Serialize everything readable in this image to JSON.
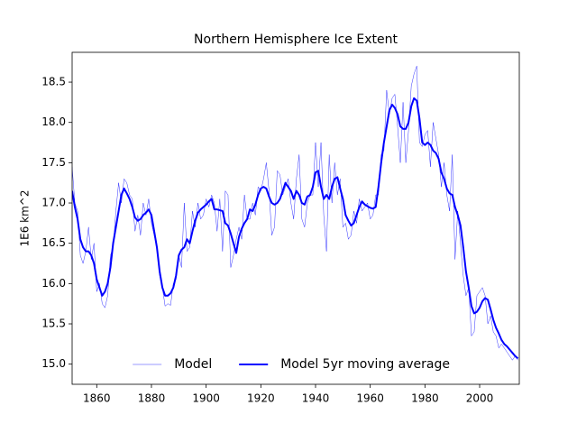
{
  "chart_data": {
    "type": "line",
    "title": "Northern Hemisphere Ice Extent",
    "y_label": "1E6 km^2",
    "x": [
      1851,
      1852,
      1853,
      1854,
      1855,
      1856,
      1857,
      1858,
      1859,
      1860,
      1861,
      1862,
      1863,
      1864,
      1865,
      1866,
      1867,
      1868,
      1869,
      1870,
      1871,
      1872,
      1873,
      1874,
      1875,
      1876,
      1877,
      1878,
      1879,
      1880,
      1881,
      1882,
      1883,
      1884,
      1885,
      1886,
      1887,
      1888,
      1889,
      1890,
      1891,
      1892,
      1893,
      1894,
      1895,
      1896,
      1897,
      1898,
      1899,
      1900,
      1901,
      1902,
      1903,
      1904,
      1905,
      1906,
      1907,
      1908,
      1909,
      1910,
      1911,
      1912,
      1913,
      1914,
      1915,
      1916,
      1917,
      1918,
      1919,
      1920,
      1921,
      1922,
      1923,
      1924,
      1925,
      1926,
      1927,
      1928,
      1929,
      1930,
      1931,
      1932,
      1933,
      1934,
      1935,
      1936,
      1937,
      1938,
      1939,
      1940,
      1941,
      1942,
      1943,
      1944,
      1945,
      1946,
      1947,
      1948,
      1949,
      1950,
      1951,
      1952,
      1953,
      1954,
      1955,
      1956,
      1957,
      1958,
      1959,
      1960,
      1961,
      1962,
      1963,
      1964,
      1965,
      1966,
      1967,
      1968,
      1969,
      1970,
      1971,
      1972,
      1973,
      1974,
      1975,
      1976,
      1977,
      1978,
      1979,
      1980,
      1981,
      1982,
      1983,
      1984,
      1985,
      1986,
      1987,
      1988,
      1989,
      1990,
      1991,
      1992,
      1993,
      1994,
      1995,
      1996,
      1997,
      1998,
      1999,
      2000,
      2001,
      2002,
      2003,
      2004,
      2005,
      2006,
      2007,
      2008,
      2009,
      2010,
      2011,
      2012,
      2013,
      2014
    ],
    "series": [
      {
        "name": "Model",
        "color": "#0000ff",
        "width": 0.4,
        "values": [
          17.45,
          17.0,
          16.9,
          16.35,
          16.25,
          16.4,
          16.7,
          16.3,
          16.5,
          15.9,
          16.0,
          15.75,
          15.7,
          15.85,
          16.35,
          16.45,
          16.9,
          17.25,
          17.0,
          17.3,
          17.25,
          17.1,
          17.05,
          16.65,
          16.85,
          16.6,
          17.0,
          16.85,
          17.05,
          16.75,
          16.6,
          16.45,
          16.1,
          15.95,
          15.72,
          15.75,
          15.73,
          16.0,
          16.05,
          16.35,
          16.2,
          17.0,
          16.4,
          16.45,
          16.9,
          16.7,
          17.0,
          16.8,
          16.85,
          17.05,
          16.95,
          17.1,
          17.0,
          16.65,
          17.05,
          16.4,
          17.15,
          17.1,
          16.2,
          16.35,
          16.55,
          16.7,
          16.55,
          17.1,
          16.8,
          16.8,
          17.0,
          16.85,
          17.2,
          17.15,
          17.3,
          17.5,
          17.15,
          16.6,
          16.7,
          17.4,
          17.35,
          17.1,
          17.2,
          17.3,
          17.0,
          16.8,
          17.3,
          17.6,
          16.8,
          16.7,
          17.0,
          17.1,
          17.1,
          17.75,
          17.2,
          17.75,
          16.85,
          16.4,
          17.6,
          17.0,
          17.5,
          17.1,
          17.3,
          16.7,
          16.75,
          16.55,
          16.6,
          16.9,
          16.75,
          17.05,
          16.9,
          16.95,
          17.0,
          16.8,
          16.85,
          17.1,
          17.1,
          17.6,
          17.65,
          18.4,
          18.1,
          18.3,
          18.35,
          17.95,
          17.5,
          18.25,
          17.5,
          17.9,
          18.45,
          18.6,
          18.7,
          17.75,
          17.7,
          17.85,
          17.9,
          17.45,
          18.0,
          17.8,
          17.6,
          17.2,
          17.5,
          17.1,
          16.9,
          17.6,
          16.3,
          16.9,
          16.5,
          16.1,
          15.85,
          15.95,
          15.35,
          15.4,
          15.85,
          15.9,
          15.95,
          15.85,
          15.5,
          15.6,
          15.4,
          15.35,
          15.2,
          15.25,
          15.2,
          15.15,
          15.1,
          15.05,
          15.1,
          15.05
        ]
      },
      {
        "name": "Model 5yr moving average",
        "color": "#0000ff",
        "width": 2,
        "values": [
          17.15,
          16.95,
          16.8,
          16.55,
          16.45,
          16.4,
          16.4,
          16.35,
          16.25,
          16.05,
          15.95,
          15.85,
          15.9,
          16.0,
          16.2,
          16.5,
          16.7,
          16.9,
          17.1,
          17.18,
          17.12,
          17.05,
          16.95,
          16.82,
          16.78,
          16.8,
          16.85,
          16.88,
          16.92,
          16.85,
          16.65,
          16.45,
          16.15,
          15.95,
          15.85,
          15.85,
          15.88,
          15.95,
          16.1,
          16.35,
          16.42,
          16.45,
          16.55,
          16.5,
          16.65,
          16.78,
          16.88,
          16.92,
          16.95,
          16.98,
          17.02,
          17.05,
          16.92,
          16.92,
          16.91,
          16.9,
          16.75,
          16.72,
          16.62,
          16.5,
          16.38,
          16.58,
          16.68,
          16.75,
          16.8,
          16.92,
          16.9,
          16.98,
          17.1,
          17.18,
          17.2,
          17.18,
          17.08,
          17.0,
          16.98,
          17.0,
          17.05,
          17.15,
          17.25,
          17.2,
          17.15,
          17.05,
          17.15,
          17.1,
          17.0,
          16.98,
          17.08,
          17.1,
          17.2,
          17.38,
          17.4,
          17.2,
          17.05,
          17.1,
          17.05,
          17.2,
          17.3,
          17.32,
          17.18,
          17.05,
          16.85,
          16.78,
          16.72,
          16.75,
          16.85,
          16.95,
          17.02,
          16.98,
          16.96,
          16.94,
          16.93,
          16.95,
          17.2,
          17.5,
          17.75,
          17.95,
          18.15,
          18.22,
          18.18,
          18.1,
          17.95,
          17.92,
          17.92,
          18.0,
          18.2,
          18.3,
          18.27,
          18.05,
          17.75,
          17.72,
          17.75,
          17.72,
          17.65,
          17.62,
          17.55,
          17.38,
          17.3,
          17.18,
          17.12,
          17.1,
          16.95,
          16.85,
          16.72,
          16.45,
          16.15,
          15.95,
          15.72,
          15.63,
          15.65,
          15.7,
          15.78,
          15.82,
          15.8,
          15.68,
          15.55,
          15.45,
          15.38,
          15.3,
          15.25,
          15.22,
          15.18,
          15.14,
          15.1,
          15.07
        ]
      }
    ],
    "xlim": [
      1851,
      2014.5
    ],
    "ylim": [
      14.75,
      18.87
    ],
    "xticks": [
      1860,
      1880,
      1900,
      1920,
      1940,
      1960,
      1980,
      2000
    ],
    "yticks": [
      {
        "value": 15,
        "label": "15.0"
      },
      15.5,
      {
        "value": 16,
        "label": "16.0"
      },
      16.5,
      {
        "value": 17,
        "label": "17.0"
      },
      17.5,
      {
        "value": 18,
        "label": "18.0"
      },
      18.5
    ],
    "legend": "lower center"
  }
}
